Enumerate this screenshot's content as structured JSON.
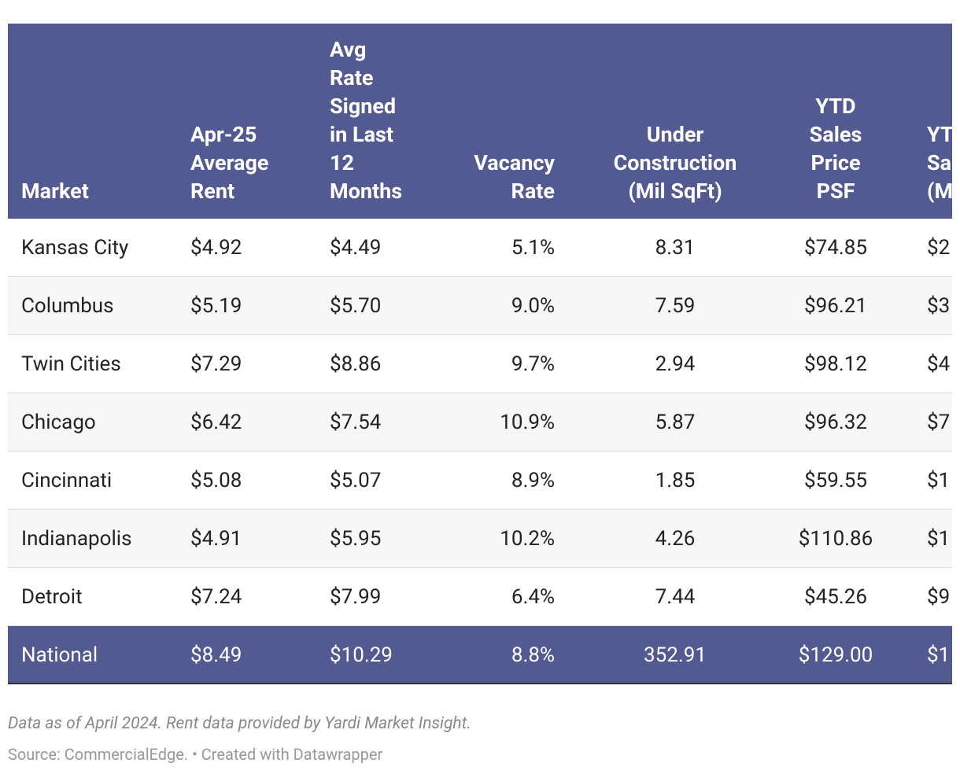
{
  "table": {
    "columns": [
      [
        "Market"
      ],
      [
        "Apr-25",
        "Average",
        "Rent"
      ],
      [
        "Avg",
        "Rate",
        "Signed",
        "in Last",
        "12",
        "Months"
      ],
      [
        "Vacancy",
        "Rate"
      ],
      [
        "Under",
        "Construction",
        "(Mil SqFt)"
      ],
      [
        "YTD",
        "Sales",
        "Price",
        "PSF"
      ],
      [
        "YT",
        "Sa",
        "(M"
      ]
    ],
    "rows": [
      [
        "Kansas City",
        "$4.92",
        "$4.49",
        "5.1%",
        "8.31",
        "$74.85",
        "$2"
      ],
      [
        "Columbus",
        "$5.19",
        "$5.70",
        "9.0%",
        "7.59",
        "$96.21",
        "$3"
      ],
      [
        "Twin Cities",
        "$7.29",
        "$8.86",
        "9.7%",
        "2.94",
        "$98.12",
        "$4"
      ],
      [
        "Chicago",
        "$6.42",
        "$7.54",
        "10.9%",
        "5.87",
        "$96.32",
        "$7"
      ],
      [
        "Cincinnati",
        "$5.08",
        "$5.07",
        "8.9%",
        "1.85",
        "$59.55",
        "$1"
      ],
      [
        "Indianapolis",
        "$4.91",
        "$5.95",
        "10.2%",
        "4.26",
        "$110.86",
        "$1"
      ],
      [
        "Detroit",
        "$7.24",
        "$7.99",
        "6.4%",
        "7.44",
        "$45.26",
        "$9"
      ]
    ],
    "total": [
      "National",
      "$8.49",
      "$10.29",
      "8.8%",
      "352.91",
      "$129.00",
      "$1"
    ]
  },
  "notes": "Data as of April 2024. Rent data provided by Yardi Market Insight.",
  "source": "Source: CommercialEdge. • Created with Datawrapper"
}
